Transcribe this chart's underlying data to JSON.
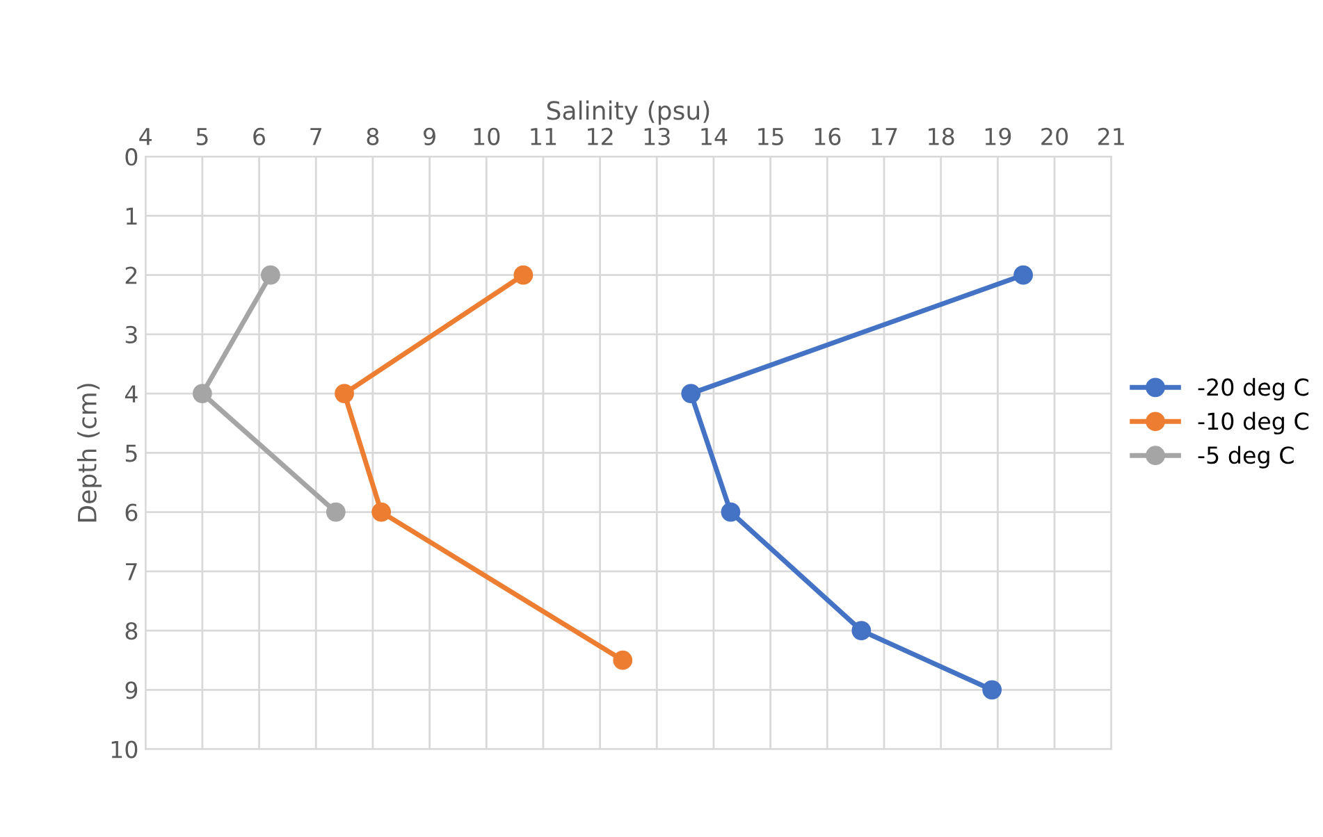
{
  "chart_data": {
    "type": "line",
    "xlabel": "Salinity (psu)",
    "ylabel": "Depth (cm)",
    "xlim": [
      4,
      21
    ],
    "xticks": [
      4,
      5,
      6,
      7,
      8,
      9,
      10,
      11,
      12,
      13,
      14,
      15,
      16,
      17,
      18,
      19,
      20,
      21
    ],
    "ylim": [
      10,
      0
    ],
    "yticks": [
      0,
      1,
      2,
      3,
      4,
      5,
      6,
      7,
      8,
      9,
      10
    ],
    "grid": true,
    "legend": "right",
    "marker": "circle",
    "line_style": "solid",
    "series": [
      {
        "name": "-20 deg C",
        "color": "#4472c4",
        "x": [
          19.45,
          13.6,
          14.3,
          16.6,
          18.9
        ],
        "values": [
          2,
          4,
          6,
          8,
          9
        ]
      },
      {
        "name": "-10 deg C",
        "color": "#ed7d31",
        "x": [
          10.65,
          7.5,
          8.15,
          12.4
        ],
        "values": [
          2,
          4,
          6,
          8.5
        ]
      },
      {
        "name": "-5 deg C",
        "color": "#a5a5a5",
        "x": [
          6.2,
          5.0,
          7.35
        ],
        "values": [
          2,
          4,
          6
        ]
      }
    ]
  }
}
